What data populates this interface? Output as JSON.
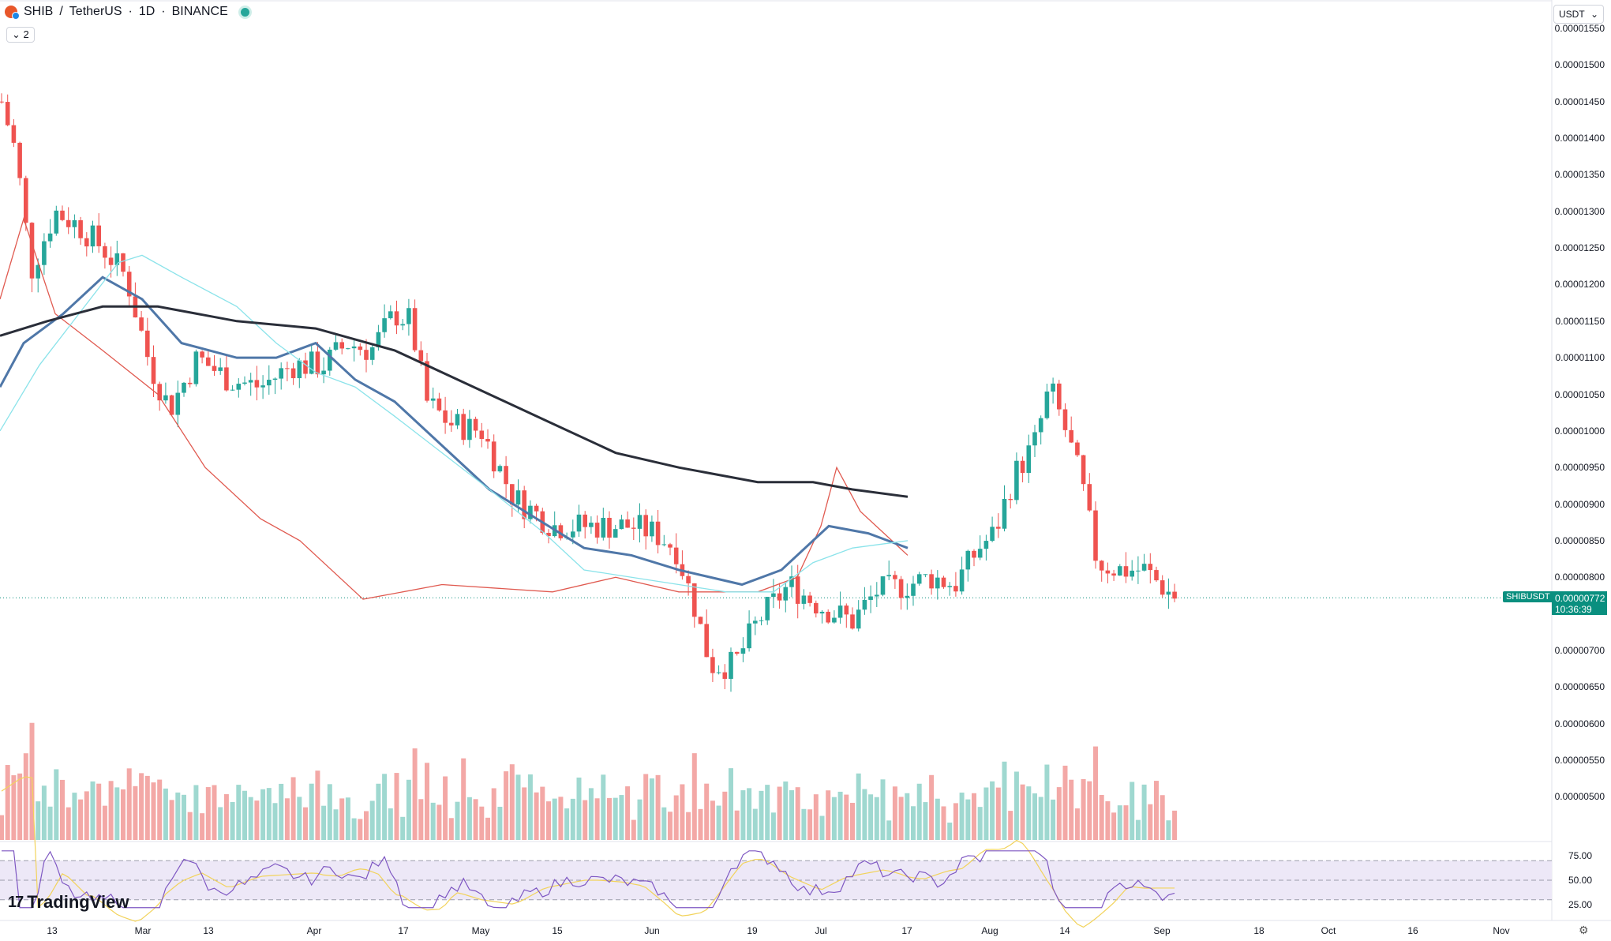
{
  "header": {
    "symbol": "SHIB",
    "separator": "/",
    "quote": "TetherUS",
    "interval": "1D",
    "exchange": "BINANCE",
    "dot": "·"
  },
  "indicators_toggle": {
    "label": "2"
  },
  "currency_select": {
    "value": "USDT"
  },
  "price_axis": {
    "ticks": [
      "0.00001550",
      "0.00001500",
      "0.00001450",
      "0.00001400",
      "0.00001350",
      "0.00001300",
      "0.00001250",
      "0.00001200",
      "0.00001150",
      "0.00001100",
      "0.00001050",
      "0.00001000",
      "0.00000950",
      "0.00000900",
      "0.00000850",
      "0.00000800",
      "0.00000700",
      "0.00000650",
      "0.00000600",
      "0.00000550",
      "0.00000500"
    ]
  },
  "current_price": {
    "symbol": "SHIBUSDT",
    "value": "0.00000772",
    "countdown": "10:36:39"
  },
  "rsi_axis": {
    "ticks": [
      "75.00",
      "50.00",
      "25.00"
    ]
  },
  "time_axis": {
    "labels": [
      "13",
      "Mar",
      "13",
      "Apr",
      "17",
      "May",
      "15",
      "Jun",
      "19",
      "Jul",
      "17",
      "Aug",
      "14",
      "Sep",
      "18",
      "Oct",
      "16",
      "Nov"
    ]
  },
  "branding": {
    "name": "TradingView"
  },
  "colors": {
    "up": "#26a69a",
    "down": "#ef5350",
    "ma_fast": "#e05a50",
    "ma_mid": "#4f77a8",
    "ma_light": "#8be3ea",
    "ma_slow": "#2a2e39",
    "rsi": "#7e57c2",
    "rsi_ma": "#f2d35b"
  },
  "chart_data": {
    "type": "candlestick",
    "title": "SHIB / TetherUS · 1D · BINANCE",
    "ylim": [
      4.4e-06,
      1.57e-05
    ],
    "x_range": [
      "2023-02-01",
      "2023-11-14"
    ],
    "last_candle_date": "2023-09-05",
    "moving_averages": [
      {
        "color": "#e05a50",
        "points": [
          [
            0,
            1.18e-05
          ],
          [
            30,
            1.29e-05
          ],
          [
            70,
            1.16e-05
          ],
          [
            130,
            1.11e-05
          ],
          [
            200,
            1.05e-05
          ],
          [
            260,
            9.5e-06
          ],
          [
            330,
            8.8e-06
          ],
          [
            380,
            8.5e-06
          ],
          [
            460,
            7.7e-06
          ],
          [
            560,
            7.9e-06
          ],
          [
            700,
            7.8e-06
          ],
          [
            780,
            8e-06
          ],
          [
            860,
            7.8e-06
          ],
          [
            960,
            7.8e-06
          ],
          [
            1010,
            8e-06
          ],
          [
            1040,
            8.7e-06
          ],
          [
            1060,
            9.5e-06
          ],
          [
            1090,
            8.9e-06
          ],
          [
            1120,
            8.6e-06
          ],
          [
            1150,
            8.3e-06
          ]
        ]
      },
      {
        "color": "#4f77a8",
        "points": [
          [
            0,
            1.06e-05
          ],
          [
            30,
            1.12e-05
          ],
          [
            80,
            1.16e-05
          ],
          [
            130,
            1.21e-05
          ],
          [
            180,
            1.18e-05
          ],
          [
            230,
            1.12e-05
          ],
          [
            300,
            1.1e-05
          ],
          [
            350,
            1.1e-05
          ],
          [
            400,
            1.12e-05
          ],
          [
            450,
            1.07e-05
          ],
          [
            500,
            1.04e-05
          ],
          [
            560,
            9.8e-06
          ],
          [
            620,
            9.2e-06
          ],
          [
            680,
            8.8e-06
          ],
          [
            740,
            8.4e-06
          ],
          [
            800,
            8.3e-06
          ],
          [
            860,
            8.1e-06
          ],
          [
            940,
            7.9e-06
          ],
          [
            990,
            8.1e-06
          ],
          [
            1030,
            8.5e-06
          ],
          [
            1050,
            8.7e-06
          ],
          [
            1100,
            8.6e-06
          ],
          [
            1150,
            8.4e-06
          ]
        ]
      },
      {
        "color": "#8be3ea",
        "points": [
          [
            0,
            1e-05
          ],
          [
            50,
            1.09e-05
          ],
          [
            100,
            1.16e-05
          ],
          [
            150,
            1.23e-05
          ],
          [
            180,
            1.24e-05
          ],
          [
            230,
            1.21e-05
          ],
          [
            300,
            1.17e-05
          ],
          [
            350,
            1.12e-05
          ],
          [
            400,
            1.08e-05
          ],
          [
            450,
            1.06e-05
          ],
          [
            500,
            1.02e-05
          ],
          [
            560,
            9.7e-06
          ],
          [
            620,
            9.2e-06
          ],
          [
            690,
            8.6e-06
          ],
          [
            740,
            8.1e-06
          ],
          [
            800,
            8e-06
          ],
          [
            860,
            7.9e-06
          ],
          [
            920,
            7.8e-06
          ],
          [
            980,
            7.8e-06
          ],
          [
            1030,
            8.2e-06
          ],
          [
            1080,
            8.4e-06
          ],
          [
            1150,
            8.5e-06
          ]
        ]
      },
      {
        "color": "#2a2e39",
        "points": [
          [
            0,
            1.13e-05
          ],
          [
            60,
            1.15e-05
          ],
          [
            130,
            1.17e-05
          ],
          [
            200,
            1.17e-05
          ],
          [
            300,
            1.15e-05
          ],
          [
            400,
            1.14e-05
          ],
          [
            500,
            1.11e-05
          ],
          [
            600,
            1.06e-05
          ],
          [
            700,
            1.01e-05
          ],
          [
            780,
            9.7e-06
          ],
          [
            860,
            9.5e-06
          ],
          [
            960,
            9.3e-06
          ],
          [
            1030,
            9.3e-06
          ],
          [
            1080,
            9.2e-06
          ],
          [
            1150,
            9.1e-06
          ]
        ]
      }
    ],
    "volume_max_label": "",
    "rsi": {
      "ticks": [
        75,
        50,
        25
      ]
    }
  }
}
